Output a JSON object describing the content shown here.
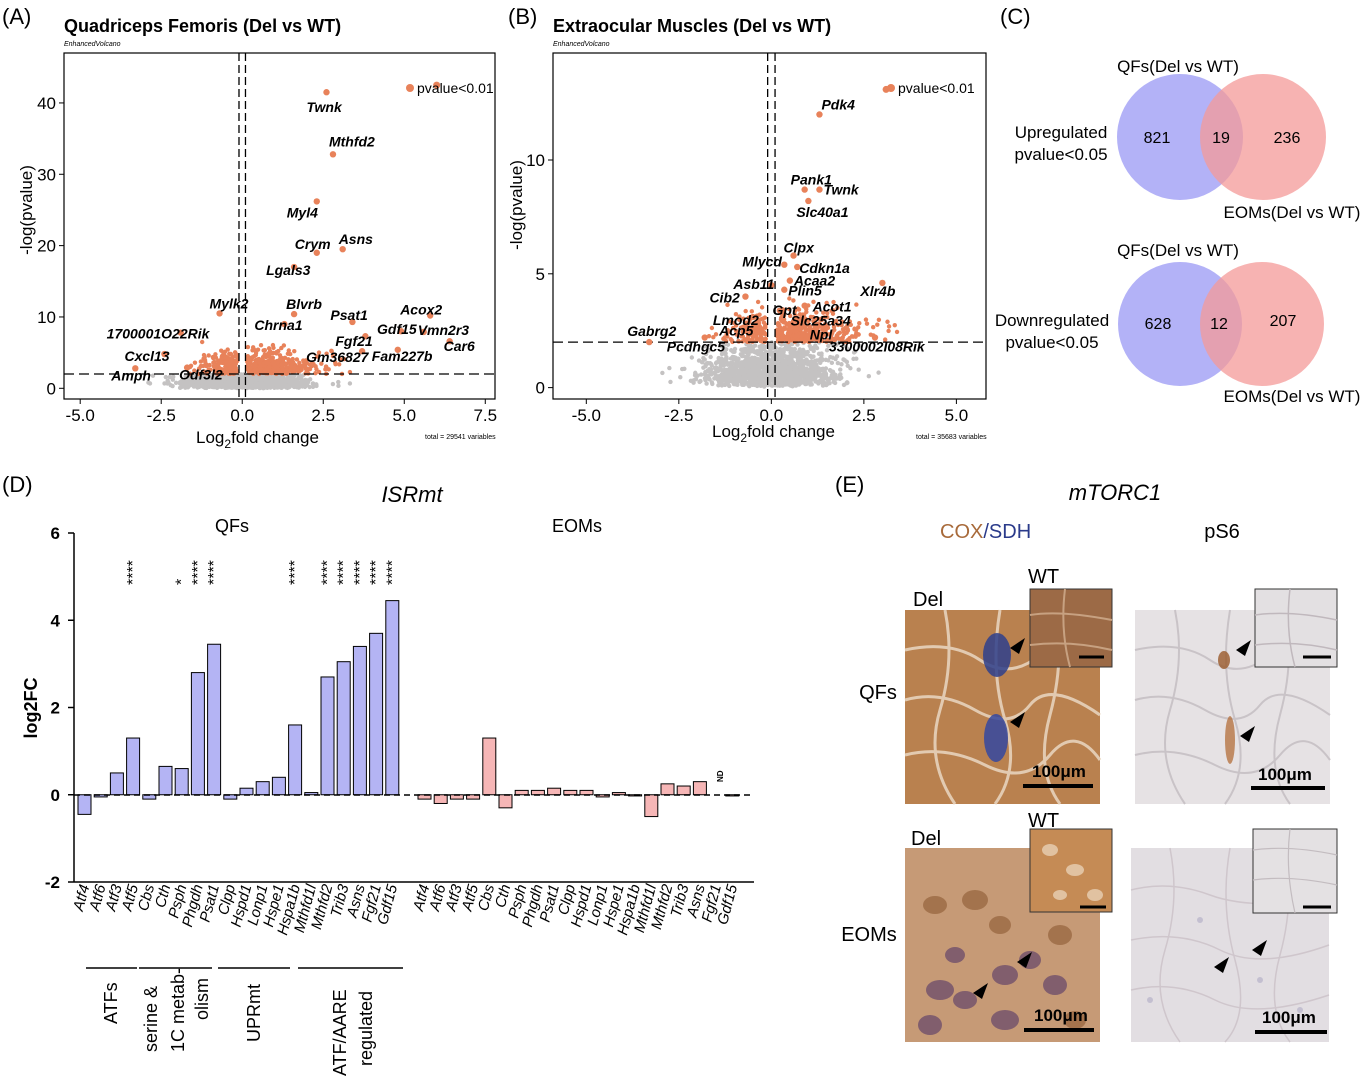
{
  "colors": {
    "sig": "#e8825a",
    "nonsig": "#c4c2c2",
    "venn_qf": "#9a98f4",
    "venn_eom": "#f49a98",
    "venn_overlap": "#b07ab8",
    "bar_qf": "#b4b4f4",
    "bar_eom": "#f6b6b6",
    "cox_brown": "#a86a3a",
    "sdh_blue": "#2a3a8a",
    "ihc_bg": "#e6e2e4"
  },
  "panelA": {
    "panel_label": "(A)",
    "title": "Quadriceps Femoris (Del vs WT)",
    "subtitle": "EnhancedVolcano",
    "xlabel_main": "Log",
    "xlabel_sub": "2",
    "xlabel_rest": "fold change",
    "ylabel": "-log(pvalue)",
    "legend": "pvalue<0.01",
    "footnote": "total = 29541 variables",
    "xticks": [
      "-5.0",
      "-2.5",
      "0.0",
      "2.5",
      "5.0",
      "7.5"
    ],
    "yticks": [
      "0",
      "10",
      "20",
      "30",
      "40"
    ]
  },
  "panelB": {
    "panel_label": "(B)",
    "title": "Extraocular Muscles (Del vs WT)",
    "subtitle": "EnhancedVolcano",
    "xlabel_main": "Log",
    "xlabel_sub": "2",
    "xlabel_rest": "fold change",
    "ylabel": "-log(pvalue)",
    "legend": "pvalue<0.01",
    "footnote": "total = 35683 variables",
    "xticks": [
      "-5.0",
      "-2.5",
      "0.0",
      "2.5",
      "5.0"
    ],
    "yticks": [
      "0",
      "5",
      "10"
    ]
  },
  "panelC": {
    "panel_label": "(C)",
    "up": {
      "qf_label": "QFs(Del vs WT)",
      "eom_label": "EOMs(Del vs WT)",
      "side_label_1": "Upregulated",
      "side_label_2": "pvalue<0.05",
      "qf_only": "821",
      "overlap": "19",
      "eom_only": "236"
    },
    "down": {
      "qf_label": "QFs(Del vs WT)",
      "eom_label": "EOMs(Del vs WT)",
      "side_label_1": "Downregulated",
      "side_label_2": "pvalue<0.05",
      "qf_only": "628",
      "overlap": "12",
      "eom_only": "207"
    }
  },
  "panelD": {
    "panel_label": "(D)",
    "title": "ISRmt",
    "group_qf": "QFs",
    "group_eom": "EOMs",
    "ylabel": "log2FC",
    "yticks": [
      "-2",
      "0",
      "2",
      "4",
      "6"
    ],
    "nd_label": "ND",
    "categories": [
      {
        "l1": "ATFs",
        "l2": "",
        "l3": ""
      },
      {
        "l1": "serine &",
        "l2": "1C metab-",
        "l3": "olism"
      },
      {
        "l1": "UPRmt",
        "l2": "",
        "l3": ""
      },
      {
        "l1": "ATF/AARE",
        "l2": "regulated",
        "l3": ""
      }
    ]
  },
  "panelE": {
    "panel_label": "(E)",
    "title": "mTORC1",
    "col1_a": "COX",
    "col1_sep": "/",
    "col1_b": "SDH",
    "col2": "pS6",
    "row1": "QFs",
    "row2": "EOMs",
    "del": "Del",
    "wt": "WT",
    "scale": "100μm"
  },
  "chart_data": [
    {
      "type": "scatter",
      "panel": "A",
      "title": "Quadriceps Femoris (Del vs WT)",
      "xlabel": "Log2fold change",
      "ylabel": "-log(pvalue)",
      "xlim": [
        -5.5,
        7.8
      ],
      "ylim": [
        -1.5,
        47
      ],
      "fc_cutoffs": [
        -0.1,
        0.1
      ],
      "p_cutoff_y": 2,
      "legend": "pvalue<0.01",
      "labeled_points": [
        {
          "label": "Twnk",
          "x": 2.6,
          "y": 41.5
        },
        {
          "label": "Mthfd2",
          "x": 2.8,
          "y": 32.8
        },
        {
          "label": "Myl4",
          "x": 2.3,
          "y": 26.2
        },
        {
          "label": "Crym",
          "x": 2.3,
          "y": 19.0
        },
        {
          "label": "Asns",
          "x": 3.1,
          "y": 19.5
        },
        {
          "label": "Lgals3",
          "x": 1.6,
          "y": 17.0
        },
        {
          "label": "Mylk2",
          "x": -0.7,
          "y": 10.5
        },
        {
          "label": "Blvrb",
          "x": 1.6,
          "y": 10.4
        },
        {
          "label": "Chrna1",
          "x": 1.3,
          "y": 9.0
        },
        {
          "label": "Psat1",
          "x": 3.4,
          "y": 9.3
        },
        {
          "label": "Acox2",
          "x": 5.8,
          "y": 10.2
        },
        {
          "label": "Fgf21",
          "x": 3.8,
          "y": 7.3
        },
        {
          "label": "Gdf15",
          "x": 4.9,
          "y": 8.0
        },
        {
          "label": "Vmn2r3",
          "x": 5.6,
          "y": 7.9
        },
        {
          "label": "Car6",
          "x": 6.4,
          "y": 6.6
        },
        {
          "label": "Gm36827",
          "x": 3.7,
          "y": 5.2
        },
        {
          "label": "Fam227b",
          "x": 4.8,
          "y": 5.4
        },
        {
          "label": "1700001O22Rik",
          "x": -1.9,
          "y": 7.8
        },
        {
          "label": "Cxcl13",
          "x": -2.4,
          "y": 4.8
        },
        {
          "label": "Amph",
          "x": -3.3,
          "y": 2.8
        },
        {
          "label": "Odf3l2",
          "x": -1.7,
          "y": 2.9
        }
      ],
      "extra_significant_points": [
        {
          "x": 6.0,
          "y": 42.5
        }
      ]
    },
    {
      "type": "scatter",
      "panel": "B",
      "title": "Extraocular Muscles (Del vs WT)",
      "xlabel": "Log2fold change",
      "ylabel": "-log(pvalue)",
      "xlim": [
        -5.9,
        5.8
      ],
      "ylim": [
        -0.5,
        14.7
      ],
      "fc_cutoffs": [
        -0.1,
        0.1
      ],
      "p_cutoff_y": 2,
      "legend": "pvalue<0.01",
      "labeled_points": [
        {
          "label": "Pdk4",
          "x": 1.3,
          "y": 12.0
        },
        {
          "label": "Pank1",
          "x": 0.9,
          "y": 8.7
        },
        {
          "label": "Twnk",
          "x": 1.3,
          "y": 8.7
        },
        {
          "label": "Slc40a1",
          "x": 1.0,
          "y": 8.2
        },
        {
          "label": "Clpx",
          "x": 0.6,
          "y": 5.8
        },
        {
          "label": "Mlycd",
          "x": 0.35,
          "y": 5.4
        },
        {
          "label": "Cdkn1a",
          "x": 0.7,
          "y": 5.3
        },
        {
          "label": "Acaa2",
          "x": 0.5,
          "y": 4.7
        },
        {
          "label": "Asb11",
          "x": 0.0,
          "y": 4.5
        },
        {
          "label": "Plin5",
          "x": 0.35,
          "y": 4.3
        },
        {
          "label": "Xlr4b",
          "x": 3.0,
          "y": 4.6
        },
        {
          "label": "Acot1",
          "x": 0.9,
          "y": 3.6
        },
        {
          "label": "Cib2",
          "x": -0.7,
          "y": 4.0
        },
        {
          "label": "Gpt",
          "x": 0.3,
          "y": 3.4
        },
        {
          "label": "Slc25a34",
          "x": 0.9,
          "y": 3.0
        },
        {
          "label": "Lmod2",
          "x": -0.5,
          "y": 3.1
        },
        {
          "label": "Acp5",
          "x": -0.6,
          "y": 2.6
        },
        {
          "label": "Gabrg2",
          "x": -3.3,
          "y": 2.0
        },
        {
          "label": "Pcdhgc5",
          "x": -1.8,
          "y": 2.2
        },
        {
          "label": "Npl",
          "x": 1.2,
          "y": 2.2
        },
        {
          "label": "3300002I08Rik",
          "x": 2.8,
          "y": 2.2
        }
      ],
      "extra_significant_points": [
        {
          "x": 3.1,
          "y": 13.1
        }
      ]
    },
    {
      "type": "venn",
      "panel": "C",
      "sets": [
        {
          "name": "QFs(Del vs WT)",
          "up_only": 821,
          "down_only": 628
        },
        {
          "name": "EOMs(Del vs WT)",
          "up_only": 236,
          "down_only": 207
        }
      ],
      "overlap": {
        "up": 19,
        "down": 12
      }
    },
    {
      "type": "bar",
      "panel": "D",
      "title": "ISRmt",
      "ylabel": "log2FC",
      "ylim": [
        -2,
        6
      ],
      "categories": [
        "Atf4",
        "Atf6",
        "Atf3",
        "Atf5",
        "Cbs",
        "Cth",
        "Psph",
        "Phgdh",
        "Psat1",
        "Clpp",
        "Hspd1",
        "Lonp1",
        "Hspe1",
        "Hspa1b",
        "Mthfd1l",
        "Mthfd2",
        "Trib3",
        "Asns",
        "Fgf21",
        "Gdf15"
      ],
      "series": [
        {
          "name": "QFs",
          "values": [
            -0.45,
            -0.05,
            0.5,
            1.3,
            -0.1,
            0.65,
            0.6,
            2.8,
            3.45,
            -0.1,
            0.15,
            0.3,
            0.4,
            1.6,
            0.05,
            2.7,
            3.05,
            3.4,
            3.7,
            4.45
          ],
          "significance": [
            "",
            "",
            "",
            "****",
            "",
            "",
            "*",
            "****",
            "****",
            "",
            "",
            "",
            "",
            "****",
            "",
            "****",
            "****",
            "****",
            "****",
            "****"
          ]
        },
        {
          "name": "EOMs",
          "values": [
            -0.1,
            -0.2,
            -0.1,
            -0.1,
            1.3,
            -0.3,
            0.1,
            0.1,
            0.15,
            0.1,
            0.1,
            -0.05,
            0.05,
            0.0,
            -0.5,
            0.25,
            0.2,
            0.3,
            null,
            0.0
          ],
          "significance": [
            "",
            "",
            "",
            "",
            "",
            "",
            "",
            "",
            "",
            "",
            "",
            "",
            "",
            "",
            "",
            "",
            "",
            "",
            "ND",
            ""
          ]
        }
      ],
      "category_groups": [
        {
          "label": "ATFs",
          "genes": [
            "Atf4",
            "Atf6",
            "Atf3",
            "Atf5"
          ]
        },
        {
          "label": "serine & 1C metabolism",
          "genes": [
            "Cbs",
            "Cth",
            "Psph",
            "Phgdh",
            "Psat1"
          ]
        },
        {
          "label": "UPRmt",
          "genes": [
            "Clpp",
            "Hspd1",
            "Lonp1",
            "Hspe1",
            "Hspa1b"
          ]
        },
        {
          "label": "ATF/AARE regulated",
          "genes": [
            "Mthfd1l",
            "Mthfd2",
            "Trib3",
            "Asns",
            "Fgf21",
            "Gdf15"
          ]
        }
      ]
    }
  ]
}
